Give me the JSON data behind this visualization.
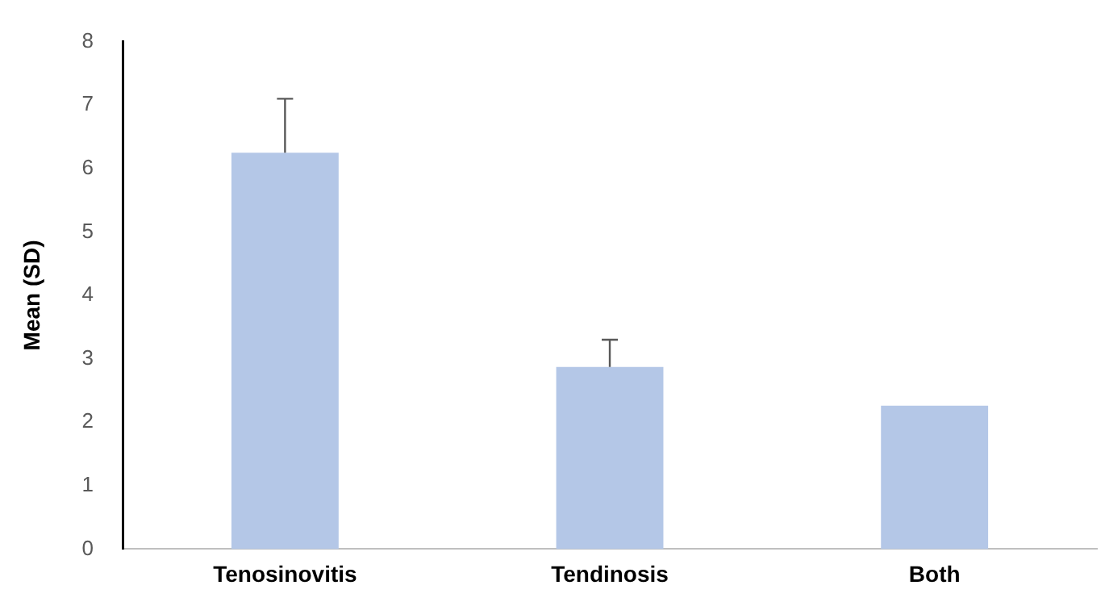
{
  "chart_data": {
    "type": "bar",
    "ylabel": "Mean (SD)",
    "categories": [
      "Tenosinovitis",
      "Tendinosis",
      "Both"
    ],
    "values": [
      6.25,
      2.87,
      2.26
    ],
    "color": "#b4c7e7",
    "errors": [
      0.85,
      0.43,
      null
    ],
    "ylim": [
      0,
      8
    ],
    "yticks": [
      0,
      1,
      2,
      3,
      4,
      5,
      6,
      7,
      8
    ],
    "grid": false,
    "legend": false
  }
}
